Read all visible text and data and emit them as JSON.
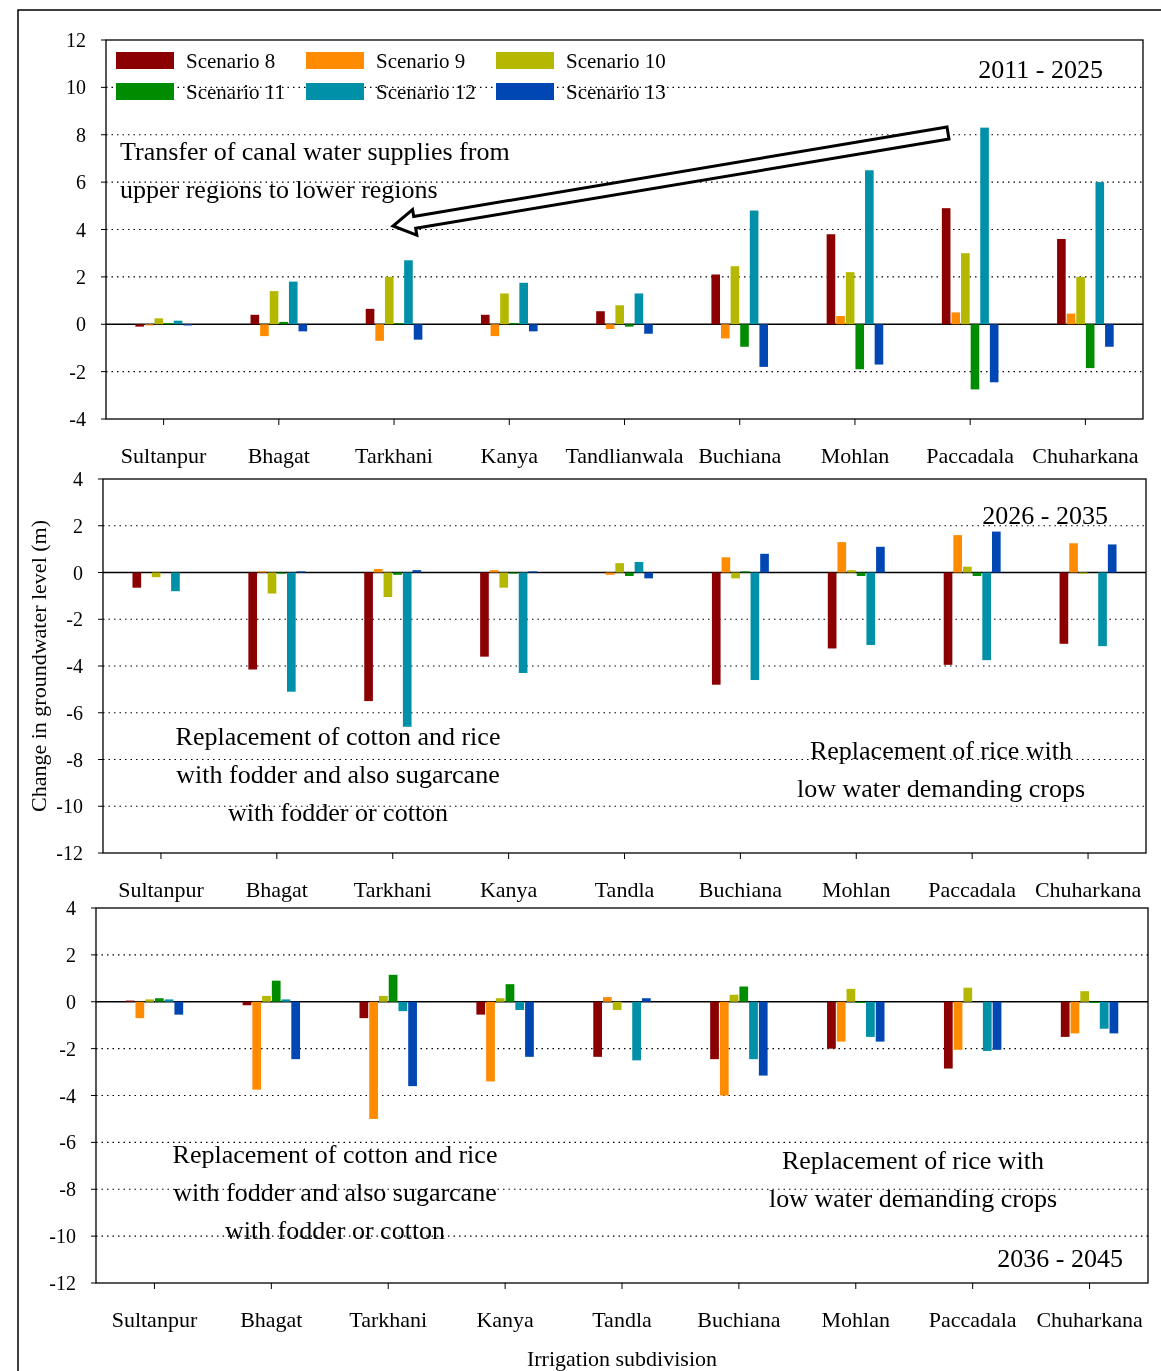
{
  "chart_data": [
    {
      "type": "bar",
      "categories": [
        "Sultanpur",
        "Bhagat",
        "Tarkhani",
        "Kanya",
        "Tandlianwala",
        "Buchiana",
        "Mohlan",
        "Paccadala",
        "Chuharkana"
      ],
      "ylim": [
        -4,
        12
      ],
      "yticks": [
        -4,
        -2,
        0,
        2,
        4,
        6,
        8,
        10,
        12
      ],
      "grid": "y",
      "legend": "top left",
      "series": [
        {
          "name": "Scenario 8",
          "color": "#8b0000",
          "values": [
            -0.1,
            0.4,
            0.65,
            0.4,
            0.55,
            2.1,
            3.8,
            4.9,
            3.6
          ]
        },
        {
          "name": "Scenario 9",
          "color": "#ff8c00",
          "values": [
            -0.05,
            -0.5,
            -0.7,
            -0.5,
            -0.2,
            -0.6,
            0.35,
            0.5,
            0.45
          ]
        },
        {
          "name": "Scenario 10",
          "color": "#b5b800",
          "values": [
            0.25,
            1.4,
            2.0,
            1.3,
            0.8,
            2.45,
            2.2,
            3.0,
            2.0
          ]
        },
        {
          "name": "Scenario 11",
          "color": "#008c00",
          "values": [
            0.05,
            0.1,
            0.05,
            0.05,
            -0.1,
            -0.95,
            -1.9,
            -2.75,
            -1.85
          ]
        },
        {
          "name": "Scenario 12",
          "color": "#0090a8",
          "values": [
            0.15,
            1.8,
            2.7,
            1.75,
            1.3,
            4.8,
            6.5,
            8.3,
            6.0
          ]
        },
        {
          "name": "Scenario 13",
          "color": "#0047b3",
          "values": [
            -0.05,
            -0.3,
            -0.65,
            -0.3,
            -0.4,
            -1.8,
            -1.7,
            -2.45,
            -0.95
          ]
        }
      ],
      "annotations": [
        "Transfer of canal water supplies from\nupper regions to lower regions",
        "2011 - 2025"
      ]
    },
    {
      "type": "bar",
      "categories": [
        "Sultanpur",
        "Bhagat",
        "Tarkhani",
        "Kanya",
        "Tandla",
        "Buchiana",
        "Mohlan",
        "Paccadala",
        "Chuharkana"
      ],
      "ylim": [
        -12,
        4
      ],
      "yticks": [
        -12,
        -10,
        -8,
        -6,
        -4,
        -2,
        0,
        2,
        4
      ],
      "grid": "y",
      "ylabel": "Change in groundwater level (m)",
      "series": [
        {
          "color": "#8b0000",
          "values": [
            -0.65,
            -4.15,
            -5.5,
            -3.6,
            0,
            -4.8,
            -3.25,
            -3.95,
            -3.05
          ]
        },
        {
          "color": "#ff8c00",
          "values": [
            0,
            0.05,
            0.15,
            0.1,
            -0.1,
            0.65,
            1.3,
            1.6,
            1.25
          ]
        },
        {
          "color": "#b5b800",
          "values": [
            -0.2,
            -0.9,
            -1.05,
            -0.65,
            0.4,
            -0.25,
            0.1,
            0.25,
            -0.05
          ]
        },
        {
          "color": "#008c00",
          "values": [
            0,
            -0.05,
            -0.1,
            -0.05,
            -0.15,
            0.05,
            -0.15,
            -0.15,
            0
          ]
        },
        {
          "color": "#0090a8",
          "values": [
            -0.8,
            -5.1,
            -6.6,
            -4.3,
            0.45,
            -4.6,
            -3.1,
            -3.75,
            -3.15
          ]
        },
        {
          "color": "#0047b3",
          "values": [
            0,
            0.05,
            0.1,
            0.05,
            -0.25,
            0.8,
            1.1,
            1.75,
            1.2
          ]
        }
      ],
      "annotations": [
        "Replacement of cotton and rice\nwith fodder and also sugarcane\nwith fodder or cotton",
        "Replacement of rice with\nlow water demanding crops",
        "2026 - 2035"
      ]
    },
    {
      "type": "bar",
      "categories": [
        "Sultanpur",
        "Bhagat",
        "Tarkhani",
        "Kanya",
        "Tandla",
        "Buchiana",
        "Mohlan",
        "Paccadala",
        "Chuharkana"
      ],
      "ylim": [
        -12,
        4
      ],
      "yticks": [
        -12,
        -10,
        -8,
        -6,
        -4,
        -2,
        0,
        2,
        4
      ],
      "grid": "y",
      "xlabel": "Irrigation subdivision",
      "series": [
        {
          "color": "#8b0000",
          "values": [
            0.05,
            -0.15,
            -0.7,
            -0.55,
            -2.35,
            -2.45,
            -2.0,
            -2.85,
            -1.5
          ]
        },
        {
          "color": "#ff8c00",
          "values": [
            -0.7,
            -3.75,
            -5.0,
            -3.4,
            0.2,
            -4.0,
            -1.7,
            -2.05,
            -1.35
          ]
        },
        {
          "color": "#b5b800",
          "values": [
            0.1,
            0.25,
            0.25,
            0.15,
            -0.35,
            0.3,
            0.55,
            0.6,
            0.45
          ]
        },
        {
          "color": "#008c00",
          "values": [
            0.15,
            0.9,
            1.15,
            0.75,
            0,
            0.65,
            -0.05,
            0,
            -0.05
          ]
        },
        {
          "color": "#0090a8",
          "values": [
            0.1,
            0.1,
            -0.4,
            -0.35,
            -2.5,
            -2.45,
            -1.5,
            -2.1,
            -1.15
          ]
        },
        {
          "color": "#0047b3",
          "values": [
            -0.55,
            -2.45,
            -3.6,
            -2.35,
            0.15,
            -3.15,
            -1.7,
            -2.05,
            -1.35
          ]
        }
      ],
      "annotations": [
        "Replacement of cotton and rice\nwith fodder and also sugarcane\nwith fodder or cotton",
        "Replacement of rice with\nlow water demanding crops",
        "2036 - 2045"
      ]
    }
  ]
}
